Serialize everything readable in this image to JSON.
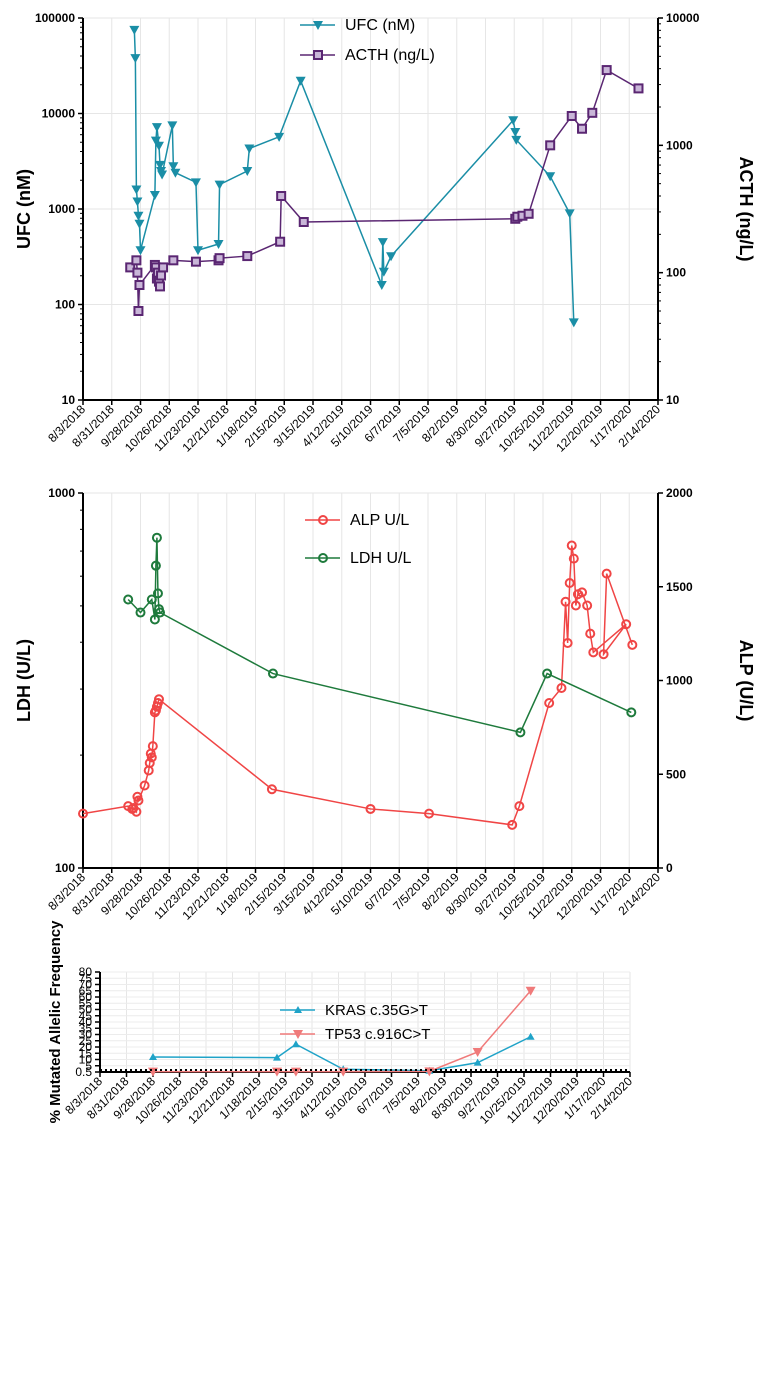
{
  "chart_data": [
    {
      "type": "line",
      "ylabel": "UFC (nM)",
      "y2label": "ACTH (ng/L)",
      "yscale": "log",
      "ylim": [
        10,
        100000
      ],
      "y2scale": "log",
      "y2lim": [
        10,
        10000
      ],
      "grid": true,
      "legend_position": "top-center",
      "x_ticks": [
        "8/3/2018",
        "8/31/2018",
        "9/28/2018",
        "10/26/2018",
        "11/23/2018",
        "12/21/2018",
        "1/18/2019",
        "2/15/2019",
        "3/15/2019",
        "4/12/2019",
        "5/10/2019",
        "6/7/2019",
        "7/5/2019",
        "8/2/2019",
        "8/30/2019",
        "9/27/2019",
        "10/25/2019",
        "11/22/2019",
        "12/20/2019",
        "1/17/2020",
        "2/14/2020"
      ],
      "y_ticks": [
        "10",
        "100",
        "1000",
        "10000",
        "100000"
      ],
      "y2_ticks": [
        "10",
        "100",
        "1000",
        "10000"
      ],
      "series": [
        {
          "name": "UFC (nM)",
          "axis": "left",
          "color": "#1a8ea6",
          "marker": "triangle-down",
          "points": [
            [
              "2018-09-22",
              75000
            ],
            [
              "2018-09-23",
              38000
            ],
            [
              "2018-09-24",
              1600
            ],
            [
              "2018-09-25",
              1200
            ],
            [
              "2018-09-26",
              850
            ],
            [
              "2018-09-27",
              700
            ],
            [
              "2018-09-28",
              370
            ],
            [
              "2018-10-12",
              1400
            ],
            [
              "2018-10-13",
              5200
            ],
            [
              "2018-10-14",
              7200
            ],
            [
              "2018-10-16",
              4600
            ],
            [
              "2018-10-17",
              2900
            ],
            [
              "2018-10-18",
              2500
            ],
            [
              "2018-10-19",
              2300
            ],
            [
              "2018-10-29",
              7500
            ],
            [
              "2018-10-30",
              2800
            ],
            [
              "2018-11-01",
              2400
            ],
            [
              "2018-11-21",
              1900
            ],
            [
              "2018-11-23",
              370
            ],
            [
              "2018-12-13",
              430
            ],
            [
              "2018-12-14",
              1800
            ],
            [
              "2019-01-10",
              2500
            ],
            [
              "2019-01-12",
              4300
            ],
            [
              "2019-02-10",
              5700
            ],
            [
              "2019-03-03",
              22000
            ],
            [
              "2019-05-21",
              160
            ],
            [
              "2019-05-22",
              450
            ],
            [
              "2019-05-23",
              220
            ],
            [
              "2019-05-30",
              320
            ],
            [
              "2019-09-26",
              8500
            ],
            [
              "2019-09-28",
              6400
            ],
            [
              "2019-09-29",
              5300
            ],
            [
              "2019-11-01",
              2200
            ],
            [
              "2019-11-20",
              900
            ],
            [
              "2019-11-24",
              65
            ]
          ]
        },
        {
          "name": "ACTH (ng/L)",
          "axis": "right",
          "color": "#5a2672",
          "marker": "square",
          "points": [
            [
              "2018-09-18",
              110
            ],
            [
              "2018-09-24",
              125
            ],
            [
              "2018-09-25",
              100
            ],
            [
              "2018-09-26",
              50
            ],
            [
              "2018-09-27",
              80
            ],
            [
              "2018-10-12",
              115
            ],
            [
              "2018-10-13",
              110
            ],
            [
              "2018-10-14",
              90
            ],
            [
              "2018-10-15",
              100
            ],
            [
              "2018-10-16",
              85
            ],
            [
              "2018-10-17",
              78
            ],
            [
              "2018-10-18",
              95
            ],
            [
              "2018-10-20",
              110
            ],
            [
              "2018-10-30",
              125
            ],
            [
              "2018-11-21",
              122
            ],
            [
              "2018-12-13",
              125
            ],
            [
              "2018-12-14",
              130
            ],
            [
              "2019-01-10",
              135
            ],
            [
              "2019-02-11",
              175
            ],
            [
              "2019-02-12",
              400
            ],
            [
              "2019-03-06",
              250
            ],
            [
              "2019-09-28",
              265
            ],
            [
              "2019-09-30",
              275
            ],
            [
              "2019-10-05",
              280
            ],
            [
              "2019-10-11",
              290
            ],
            [
              "2019-11-01",
              1000
            ],
            [
              "2019-11-22",
              1700
            ],
            [
              "2019-12-02",
              1350
            ],
            [
              "2019-12-12",
              1800
            ],
            [
              "2019-12-26",
              3900
            ],
            [
              "2020-01-26",
              2800
            ]
          ]
        }
      ]
    },
    {
      "type": "line",
      "ylabel": "LDH (U/L)",
      "y2label": "ALP (U/L)",
      "yscale": "log",
      "ylim": [
        100,
        1000
      ],
      "y2scale": "linear",
      "y2lim": [
        0,
        2000
      ],
      "grid": true,
      "legend_position": "top-center",
      "x_ticks": [
        "8/3/2018",
        "8/31/2018",
        "9/28/2018",
        "10/26/2018",
        "11/23/2018",
        "12/21/2018",
        "1/18/2019",
        "2/15/2019",
        "3/15/2019",
        "4/12/2019",
        "5/10/2019",
        "6/7/2019",
        "7/5/2019",
        "8/2/2019",
        "8/30/2019",
        "9/27/2019",
        "10/25/2019",
        "11/22/2019",
        "12/20/2019",
        "1/17/2020",
        "2/14/2020"
      ],
      "y_ticks": [
        "100",
        "1000"
      ],
      "y2_ticks": [
        "0",
        "500",
        "1000",
        "1500",
        "2000"
      ],
      "series": [
        {
          "name": "ALP  U/L",
          "axis": "right",
          "color": "#f04545",
          "marker": "circle",
          "points": [
            [
              "2018-08-03",
              290
            ],
            [
              "2018-09-16",
              330
            ],
            [
              "2018-09-20",
              315
            ],
            [
              "2018-09-21",
              320
            ],
            [
              "2018-09-24",
              300
            ],
            [
              "2018-09-25",
              380
            ],
            [
              "2018-09-26",
              360
            ],
            [
              "2018-10-02",
              440
            ],
            [
              "2018-10-06",
              520
            ],
            [
              "2018-10-07",
              560
            ],
            [
              "2018-10-08",
              610
            ],
            [
              "2018-10-09",
              590
            ],
            [
              "2018-10-10",
              650
            ],
            [
              "2018-10-12",
              830
            ],
            [
              "2018-10-13",
              840
            ],
            [
              "2018-10-14",
              860
            ],
            [
              "2018-10-15",
              880
            ],
            [
              "2018-10-16",
              900
            ],
            [
              "2019-02-03",
              420
            ],
            [
              "2019-05-10",
              315
            ],
            [
              "2019-07-06",
              290
            ],
            [
              "2019-09-25",
              230
            ],
            [
              "2019-10-02",
              330
            ],
            [
              "2019-10-31",
              880
            ],
            [
              "2019-11-12",
              960
            ],
            [
              "2019-11-16",
              1420
            ],
            [
              "2019-11-18",
              1200
            ],
            [
              "2019-11-20",
              1520
            ],
            [
              "2019-11-22",
              1720
            ],
            [
              "2019-11-24",
              1650
            ],
            [
              "2019-11-26",
              1400
            ],
            [
              "2019-11-28",
              1460
            ],
            [
              "2019-12-02",
              1470
            ],
            [
              "2019-12-07",
              1400
            ],
            [
              "2019-12-10",
              1250
            ],
            [
              "2019-12-13",
              1150
            ],
            [
              "2020-01-14",
              1300
            ],
            [
              "2019-12-23",
              1140
            ],
            [
              "2019-12-26",
              1570
            ],
            [
              "2020-01-20",
              1190
            ]
          ]
        },
        {
          "name": "LDH U/L",
          "axis": "left",
          "color": "#1e7a3c",
          "marker": "circle",
          "points": [
            [
              "2018-09-16",
              520
            ],
            [
              "2018-09-28",
              480
            ],
            [
              "2018-10-09",
              520
            ],
            [
              "2018-10-12",
              460
            ],
            [
              "2018-10-13",
              640
            ],
            [
              "2018-10-14",
              760
            ],
            [
              "2018-10-15",
              540
            ],
            [
              "2018-10-16",
              490
            ],
            [
              "2018-10-17",
              480
            ],
            [
              "2019-02-04",
              330
            ],
            [
              "2019-10-03",
              230
            ],
            [
              "2019-10-29",
              330
            ],
            [
              "2020-01-19",
              260
            ]
          ]
        }
      ]
    },
    {
      "type": "line",
      "ylabel": "% Mutated Allelic Frequency",
      "ylim": [
        0,
        80
      ],
      "grid": true,
      "legend_position": "top-center",
      "x_ticks": [
        "8/3/2018",
        "8/31/2018",
        "9/28/2018",
        "10/26/2018",
        "11/23/2018",
        "12/21/2018",
        "1/18/2019",
        "2/15/2019",
        "3/15/2019",
        "4/12/2019",
        "5/10/2019",
        "6/7/2019",
        "7/5/2019",
        "8/2/2019",
        "8/30/2019",
        "9/27/2019",
        "10/25/2019",
        "11/22/2019",
        "12/20/2019",
        "1/17/2020",
        "2/14/2020"
      ],
      "y_ticks": [
        "0",
        "5",
        "10",
        "15",
        "20",
        "25",
        "30",
        "35",
        "40",
        "45",
        "50",
        "55",
        "60",
        "65",
        "70",
        "75",
        "80"
      ],
      "y_zero_label": "0.5",
      "series": [
        {
          "name": "KRAS c.35G>T",
          "color": "#1fa3c8",
          "marker": "triangle-up",
          "points": [
            [
              "2018-09-28",
              12
            ],
            [
              "2019-02-06",
              11.5
            ],
            [
              "2019-02-26",
              22.2
            ],
            [
              "2019-04-17",
              2.2
            ],
            [
              "2019-07-17",
              1
            ],
            [
              "2019-09-06",
              7.5
            ],
            [
              "2019-11-01",
              28.2
            ]
          ]
        },
        {
          "name": "TP53 c.916C>T",
          "color": "#f07a7a",
          "marker": "triangle-down",
          "points": [
            [
              "2018-09-28",
              0.3
            ],
            [
              "2019-02-06",
              0.3
            ],
            [
              "2019-02-26",
              0.3
            ],
            [
              "2019-04-17",
              0.3
            ],
            [
              "2019-07-17",
              0.5
            ],
            [
              "2019-09-06",
              16
            ],
            [
              "2019-11-01",
              65
            ]
          ]
        }
      ]
    }
  ]
}
